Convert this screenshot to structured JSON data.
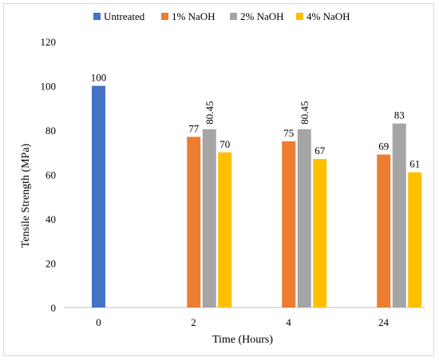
{
  "chart_data": {
    "type": "bar",
    "xlabel": "Time (Hours)",
    "ylabel": "Tensile Strength (MPa)",
    "ylim": [
      0,
      120
    ],
    "yticks": [
      0,
      20,
      40,
      60,
      80,
      100,
      120
    ],
    "grid": false,
    "legend_position": "top",
    "categories": [
      "0",
      "2",
      "4",
      "24"
    ],
    "series": [
      {
        "name": "Untreated",
        "color": "#4472c4",
        "values": [
          100,
          null,
          null,
          null
        ],
        "labels": [
          "100",
          "",
          "",
          ""
        ]
      },
      {
        "name": "1% NaOH",
        "color": "#ed7d31",
        "values": [
          null,
          77,
          75,
          69
        ],
        "labels": [
          "",
          "77",
          "75",
          "69"
        ]
      },
      {
        "name": "2% NaOH",
        "color": "#a5a5a5",
        "values": [
          null,
          80.45,
          80.45,
          83
        ],
        "labels": [
          "",
          "80.45",
          "80.45",
          "83"
        ]
      },
      {
        "name": "4% NaOH",
        "color": "#ffc000",
        "values": [
          null,
          70,
          67,
          61
        ],
        "labels": [
          "",
          "70",
          "67",
          "61"
        ]
      }
    ]
  }
}
